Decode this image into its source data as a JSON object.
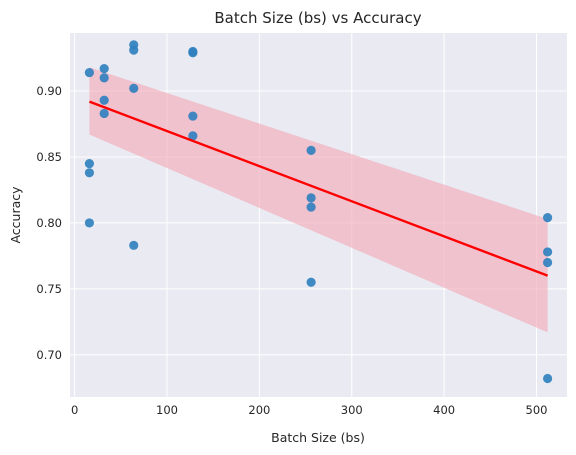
{
  "chart_data": {
    "type": "scatter",
    "title": "Batch Size (bs) vs Accuracy",
    "xlabel": "Batch Size (bs)",
    "ylabel": "Accuracy",
    "xlim": [
      -5,
      533
    ],
    "ylim": [
      0.668,
      0.944
    ],
    "xticks": [
      0,
      100,
      200,
      300,
      400,
      500
    ],
    "xtick_labels": [
      "0",
      "100",
      "200",
      "300",
      "400",
      "500"
    ],
    "yticks": [
      0.7,
      0.75,
      0.8,
      0.85,
      0.9
    ],
    "ytick_labels": [
      "0.70",
      "0.75",
      "0.80",
      "0.85",
      "0.90"
    ],
    "grid": true,
    "legend": "none",
    "point_color": "#2e7fbf",
    "points": [
      {
        "x": 16,
        "y": 0.914
      },
      {
        "x": 16,
        "y": 0.845
      },
      {
        "x": 16,
        "y": 0.838
      },
      {
        "x": 16,
        "y": 0.8
      },
      {
        "x": 32,
        "y": 0.917
      },
      {
        "x": 32,
        "y": 0.91
      },
      {
        "x": 32,
        "y": 0.893
      },
      {
        "x": 32,
        "y": 0.883
      },
      {
        "x": 64,
        "y": 0.935
      },
      {
        "x": 64,
        "y": 0.931
      },
      {
        "x": 64,
        "y": 0.902
      },
      {
        "x": 64,
        "y": 0.783
      },
      {
        "x": 128,
        "y": 0.93
      },
      {
        "x": 128,
        "y": 0.929
      },
      {
        "x": 128,
        "y": 0.881
      },
      {
        "x": 128,
        "y": 0.866
      },
      {
        "x": 256,
        "y": 0.855
      },
      {
        "x": 256,
        "y": 0.819
      },
      {
        "x": 256,
        "y": 0.812
      },
      {
        "x": 256,
        "y": 0.755
      },
      {
        "x": 512,
        "y": 0.804
      },
      {
        "x": 512,
        "y": 0.778
      },
      {
        "x": 512,
        "y": 0.77
      },
      {
        "x": 512,
        "y": 0.682
      }
    ],
    "regression": {
      "color": "#ff0000",
      "band_color": "#f2a7b4",
      "x": [
        16,
        512
      ],
      "y": [
        0.892,
        0.76
      ],
      "ci_lower": [
        0.867,
        0.717
      ],
      "ci_upper": [
        0.918,
        0.803
      ]
    }
  }
}
